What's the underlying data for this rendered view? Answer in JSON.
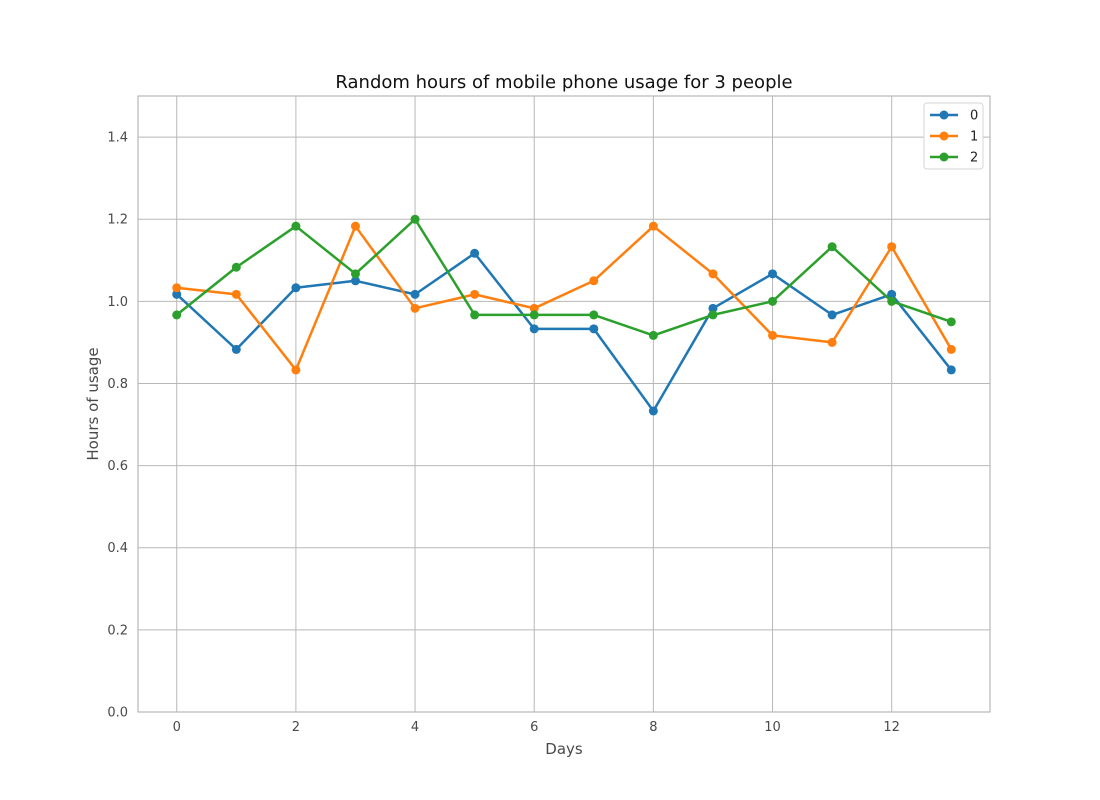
{
  "chart_data": {
    "type": "line",
    "title": "Random hours of mobile phone usage for 3 people",
    "xlabel": "Days",
    "ylabel": "Hours of usage",
    "x": [
      0,
      1,
      2,
      3,
      4,
      5,
      6,
      7,
      8,
      9,
      10,
      11,
      12,
      13
    ],
    "xlim": [
      -0.65,
      13.65
    ],
    "ylim": [
      0,
      1.5
    ],
    "xticks": [
      0,
      2,
      4,
      6,
      8,
      10,
      12
    ],
    "yticks": [
      0.0,
      0.2,
      0.4,
      0.6,
      0.8,
      1.0,
      1.2,
      1.4
    ],
    "xtick_labels": [
      "0",
      "2",
      "4",
      "6",
      "8",
      "10",
      "12"
    ],
    "ytick_labels": [
      "0.0",
      "0.2",
      "0.4",
      "0.6",
      "0.8",
      "1.0",
      "1.2",
      "1.4"
    ],
    "grid": true,
    "legend_position": "top-right",
    "series": [
      {
        "name": "0",
        "color": "#1f77b4",
        "values": [
          1.017,
          0.883,
          1.033,
          1.05,
          1.017,
          1.117,
          0.933,
          0.933,
          0.733,
          0.983,
          1.067,
          0.967,
          1.017,
          0.833
        ]
      },
      {
        "name": "1",
        "color": "#ff7f0e",
        "values": [
          1.033,
          1.017,
          0.833,
          1.183,
          0.983,
          1.017,
          0.983,
          1.05,
          1.183,
          1.067,
          0.917,
          0.9,
          1.133,
          0.883
        ]
      },
      {
        "name": "2",
        "color": "#2ca02c",
        "values": [
          0.967,
          1.083,
          1.183,
          1.067,
          1.2,
          0.967,
          0.967,
          0.967,
          0.917,
          0.967,
          1.0,
          1.133,
          1.0,
          0.95
        ]
      }
    ]
  }
}
